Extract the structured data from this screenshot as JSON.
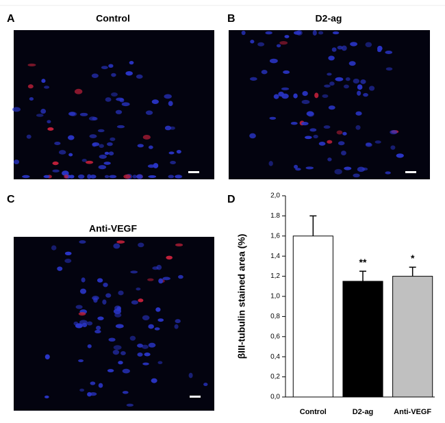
{
  "panels": [
    {
      "letter": "A",
      "title": "Control"
    },
    {
      "letter": "B",
      "title": "D2-ag"
    },
    {
      "letter": "C",
      "title": "Anti-VEGF"
    }
  ],
  "chart_letter": "D",
  "chart_data": {
    "type": "bar",
    "y_label": "βIII-tubulin stained area (%)",
    "categories": [
      "Control",
      "D2-ag",
      "Anti-VEGF"
    ],
    "values": [
      1.6,
      1.15,
      1.2
    ],
    "errors": [
      0.2,
      0.1,
      0.09
    ],
    "colors": [
      "#ffffff",
      "#000000",
      "#c0c0c0"
    ],
    "annotations": [
      null,
      "**",
      "*"
    ],
    "ylim": [
      0,
      2.0
    ],
    "yticks": [
      {
        "value": 0,
        "label": "0,0"
      },
      {
        "value": 0.2,
        "label": "0,2"
      },
      {
        "value": 0.4,
        "label": "0,4"
      },
      {
        "value": 0.6,
        "label": "0,6"
      },
      {
        "value": 0.8,
        "label": "0,8"
      },
      {
        "value": 1.0,
        "label": "1,0"
      },
      {
        "value": 1.2,
        "label": "1,2"
      },
      {
        "value": 1.4,
        "label": "1,4"
      },
      {
        "value": 1.6,
        "label": "1,6"
      },
      {
        "value": 1.8,
        "label": "1.8"
      },
      {
        "value": 2.0,
        "label": "2,0"
      }
    ]
  }
}
